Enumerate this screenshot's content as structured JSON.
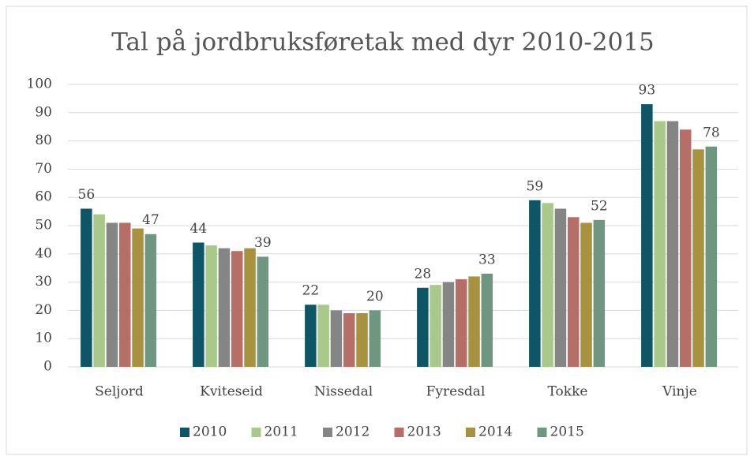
{
  "chart_data": {
    "type": "bar",
    "title": "Tal på jordbruksføretak med dyr 2010-2015",
    "categories": [
      "Seljord",
      "Kviteseid",
      "Nissedal",
      "Fyresdal",
      "Tokke",
      "Vinje"
    ],
    "series": [
      {
        "name": "2010",
        "color": "#0e5566",
        "values": [
          56,
          44,
          22,
          28,
          59,
          93
        ],
        "show_labels": true
      },
      {
        "name": "2011",
        "color": "#a9c98a",
        "values": [
          54,
          43,
          22,
          29,
          58,
          87
        ],
        "show_labels": false
      },
      {
        "name": "2012",
        "color": "#858585",
        "values": [
          51,
          42,
          20,
          30,
          56,
          87
        ],
        "show_labels": false
      },
      {
        "name": "2013",
        "color": "#b56f66",
        "values": [
          51,
          41,
          19,
          31,
          53,
          84
        ],
        "show_labels": false
      },
      {
        "name": "2014",
        "color": "#a8923f",
        "values": [
          49,
          42,
          19,
          32,
          51,
          77
        ],
        "show_labels": false
      },
      {
        "name": "2015",
        "color": "#6e9680",
        "values": [
          47,
          39,
          20,
          33,
          52,
          78
        ],
        "show_labels": true
      }
    ],
    "ylim": [
      0,
      100
    ],
    "yticks": [
      0,
      10,
      20,
      30,
      40,
      50,
      60,
      70,
      80,
      90,
      100
    ],
    "grid": true,
    "legend": "bottom"
  }
}
